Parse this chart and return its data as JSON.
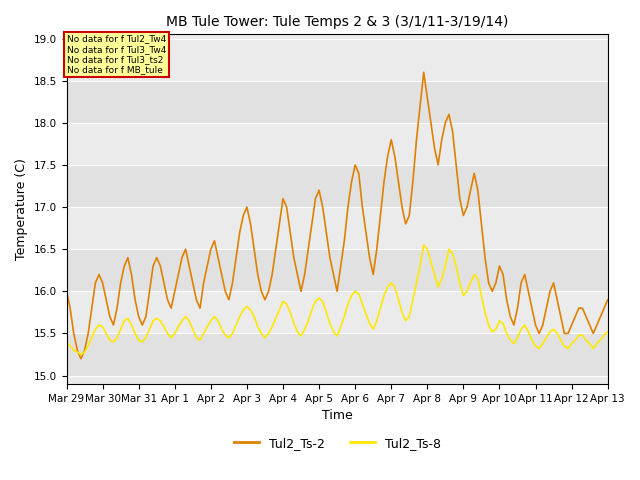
{
  "title": "MB Tule Tower: Tule Temps 2 & 3 (3/1/11-3/19/14)",
  "xlabel": "Time",
  "ylabel": "Temperature (C)",
  "ylim": [
    14.9,
    19.05
  ],
  "xlim": [
    0,
    15
  ],
  "yticks": [
    15.0,
    15.5,
    16.0,
    16.5,
    17.0,
    17.5,
    18.0,
    18.5,
    19.0
  ],
  "xtick_labels": [
    "Mar 29",
    "Mar 30",
    "Mar 31",
    "Apr 1",
    "Apr 2",
    "Apr 3",
    "Apr 4",
    "Apr 5",
    "Apr 6",
    "Apr 7",
    "Apr 8",
    "Apr 9",
    "Apr 10",
    "Apr 11",
    "Apr 12",
    "Apr 13"
  ],
  "color_ts2": "#E08000",
  "color_ts8": "#FFE800",
  "bg_plot": "#EBEBEB",
  "bg_fig": "#FFFFFF",
  "nodata_lines": [
    "No data for f Tul2_Tw4",
    "No data for f Tul3_Tw4",
    "No data for f Tul3_ts2",
    "No data for f MB_tule"
  ],
  "nodata_box_color": "#FFFF99",
  "nodata_border_color": "#CC0000",
  "ts2_x": [
    0,
    0.1,
    0.2,
    0.3,
    0.4,
    0.5,
    0.6,
    0.7,
    0.8,
    0.9,
    1.0,
    1.1,
    1.2,
    1.3,
    1.4,
    1.5,
    1.6,
    1.7,
    1.8,
    1.9,
    2.0,
    2.1,
    2.2,
    2.3,
    2.4,
    2.5,
    2.6,
    2.7,
    2.8,
    2.9,
    3.0,
    3.1,
    3.2,
    3.3,
    3.4,
    3.5,
    3.6,
    3.7,
    3.8,
    3.9,
    4.0,
    4.1,
    4.2,
    4.3,
    4.4,
    4.5,
    4.6,
    4.7,
    4.8,
    4.9,
    5.0,
    5.1,
    5.2,
    5.3,
    5.4,
    5.5,
    5.6,
    5.7,
    5.8,
    5.9,
    6.0,
    6.1,
    6.2,
    6.3,
    6.4,
    6.5,
    6.6,
    6.7,
    6.8,
    6.9,
    7.0,
    7.1,
    7.2,
    7.3,
    7.4,
    7.5,
    7.6,
    7.7,
    7.8,
    7.9,
    8.0,
    8.1,
    8.2,
    8.3,
    8.4,
    8.5,
    8.6,
    8.7,
    8.8,
    8.9,
    9.0,
    9.1,
    9.2,
    9.3,
    9.4,
    9.5,
    9.6,
    9.7,
    9.8,
    9.9,
    10.0,
    10.1,
    10.2,
    10.3,
    10.4,
    10.5,
    10.6,
    10.7,
    10.8,
    10.9,
    11.0,
    11.1,
    11.2,
    11.3,
    11.4,
    11.5,
    11.6,
    11.7,
    11.8,
    11.9,
    12.0,
    12.1,
    12.2,
    12.3,
    12.4,
    12.5,
    12.6,
    12.7,
    12.8,
    12.9,
    13.0,
    13.1,
    13.2,
    13.3,
    13.4,
    13.5,
    13.6,
    13.7,
    13.8,
    13.9,
    14.0,
    14.1,
    14.2,
    14.3,
    14.4,
    14.5,
    14.6,
    14.7,
    14.8,
    14.9,
    15.0
  ],
  "ts2_y": [
    16.0,
    15.8,
    15.5,
    15.3,
    15.2,
    15.3,
    15.5,
    15.8,
    16.1,
    16.2,
    16.1,
    15.9,
    15.7,
    15.6,
    15.8,
    16.1,
    16.3,
    16.4,
    16.2,
    15.9,
    15.7,
    15.6,
    15.7,
    16.0,
    16.3,
    16.4,
    16.3,
    16.1,
    15.9,
    15.8,
    16.0,
    16.2,
    16.4,
    16.5,
    16.3,
    16.1,
    15.9,
    15.8,
    16.1,
    16.3,
    16.5,
    16.6,
    16.4,
    16.2,
    16.0,
    15.9,
    16.1,
    16.4,
    16.7,
    16.9,
    17.0,
    16.8,
    16.5,
    16.2,
    16.0,
    15.9,
    16.0,
    16.2,
    16.5,
    16.8,
    17.1,
    17.0,
    16.7,
    16.4,
    16.2,
    16.0,
    16.2,
    16.5,
    16.8,
    17.1,
    17.2,
    17.0,
    16.7,
    16.4,
    16.2,
    16.0,
    16.3,
    16.6,
    17.0,
    17.3,
    17.5,
    17.4,
    17.0,
    16.7,
    16.4,
    16.2,
    16.5,
    16.9,
    17.3,
    17.6,
    17.8,
    17.6,
    17.3,
    17.0,
    16.8,
    16.9,
    17.3,
    17.8,
    18.2,
    18.6,
    18.3,
    18.0,
    17.7,
    17.5,
    17.8,
    18.0,
    18.1,
    17.9,
    17.5,
    17.1,
    16.9,
    17.0,
    17.2,
    17.4,
    17.2,
    16.8,
    16.4,
    16.1,
    16.0,
    16.1,
    16.3,
    16.2,
    15.9,
    15.7,
    15.6,
    15.8,
    16.1,
    16.2,
    16.0,
    15.8,
    15.6,
    15.5,
    15.6,
    15.8,
    16.0,
    16.1,
    15.9,
    15.7,
    15.5,
    15.5,
    15.6,
    15.7,
    15.8,
    15.8,
    15.7,
    15.6,
    15.5,
    15.6,
    15.7,
    15.8,
    15.9
  ],
  "ts8_x": [
    0,
    0.1,
    0.2,
    0.3,
    0.4,
    0.5,
    0.6,
    0.7,
    0.8,
    0.9,
    1.0,
    1.1,
    1.2,
    1.3,
    1.4,
    1.5,
    1.6,
    1.7,
    1.8,
    1.9,
    2.0,
    2.1,
    2.2,
    2.3,
    2.4,
    2.5,
    2.6,
    2.7,
    2.8,
    2.9,
    3.0,
    3.1,
    3.2,
    3.3,
    3.4,
    3.5,
    3.6,
    3.7,
    3.8,
    3.9,
    4.0,
    4.1,
    4.2,
    4.3,
    4.4,
    4.5,
    4.6,
    4.7,
    4.8,
    4.9,
    5.0,
    5.1,
    5.2,
    5.3,
    5.4,
    5.5,
    5.6,
    5.7,
    5.8,
    5.9,
    6.0,
    6.1,
    6.2,
    6.3,
    6.4,
    6.5,
    6.6,
    6.7,
    6.8,
    6.9,
    7.0,
    7.1,
    7.2,
    7.3,
    7.4,
    7.5,
    7.6,
    7.7,
    7.8,
    7.9,
    8.0,
    8.1,
    8.2,
    8.3,
    8.4,
    8.5,
    8.6,
    8.7,
    8.8,
    8.9,
    9.0,
    9.1,
    9.2,
    9.3,
    9.4,
    9.5,
    9.6,
    9.7,
    9.8,
    9.9,
    10.0,
    10.1,
    10.2,
    10.3,
    10.4,
    10.5,
    10.6,
    10.7,
    10.8,
    10.9,
    11.0,
    11.1,
    11.2,
    11.3,
    11.4,
    11.5,
    11.6,
    11.7,
    11.8,
    11.9,
    12.0,
    12.1,
    12.2,
    12.3,
    12.4,
    12.5,
    12.6,
    12.7,
    12.8,
    12.9,
    13.0,
    13.1,
    13.2,
    13.3,
    13.4,
    13.5,
    13.6,
    13.7,
    13.8,
    13.9,
    14.0,
    14.1,
    14.2,
    14.3,
    14.4,
    14.5,
    14.6,
    14.7,
    14.8,
    14.9,
    15.0
  ],
  "ts8_y": [
    15.4,
    15.35,
    15.3,
    15.28,
    15.25,
    15.28,
    15.35,
    15.45,
    15.55,
    15.6,
    15.58,
    15.5,
    15.42,
    15.4,
    15.45,
    15.55,
    15.65,
    15.68,
    15.6,
    15.5,
    15.42,
    15.4,
    15.45,
    15.55,
    15.65,
    15.68,
    15.65,
    15.58,
    15.5,
    15.45,
    15.5,
    15.58,
    15.65,
    15.7,
    15.65,
    15.55,
    15.45,
    15.42,
    15.5,
    15.58,
    15.65,
    15.7,
    15.65,
    15.55,
    15.48,
    15.45,
    15.5,
    15.6,
    15.7,
    15.78,
    15.82,
    15.78,
    15.7,
    15.58,
    15.5,
    15.45,
    15.5,
    15.58,
    15.68,
    15.78,
    15.88,
    15.85,
    15.75,
    15.62,
    15.52,
    15.47,
    15.55,
    15.65,
    15.78,
    15.88,
    15.92,
    15.88,
    15.75,
    15.62,
    15.52,
    15.47,
    15.58,
    15.7,
    15.85,
    15.95,
    16.0,
    15.97,
    15.85,
    15.73,
    15.62,
    15.55,
    15.65,
    15.8,
    15.95,
    16.05,
    16.1,
    16.05,
    15.9,
    15.75,
    15.65,
    15.7,
    15.9,
    16.1,
    16.3,
    16.55,
    16.5,
    16.35,
    16.2,
    16.05,
    16.15,
    16.3,
    16.5,
    16.45,
    16.3,
    16.1,
    15.95,
    16.0,
    16.1,
    16.2,
    16.15,
    15.95,
    15.75,
    15.6,
    15.52,
    15.55,
    15.65,
    15.62,
    15.5,
    15.42,
    15.38,
    15.45,
    15.55,
    15.6,
    15.52,
    15.42,
    15.35,
    15.32,
    15.38,
    15.45,
    15.52,
    15.55,
    15.5,
    15.42,
    15.35,
    15.32,
    15.38,
    15.42,
    15.48,
    15.48,
    15.42,
    15.38,
    15.32,
    15.38,
    15.42,
    15.48,
    15.52
  ]
}
